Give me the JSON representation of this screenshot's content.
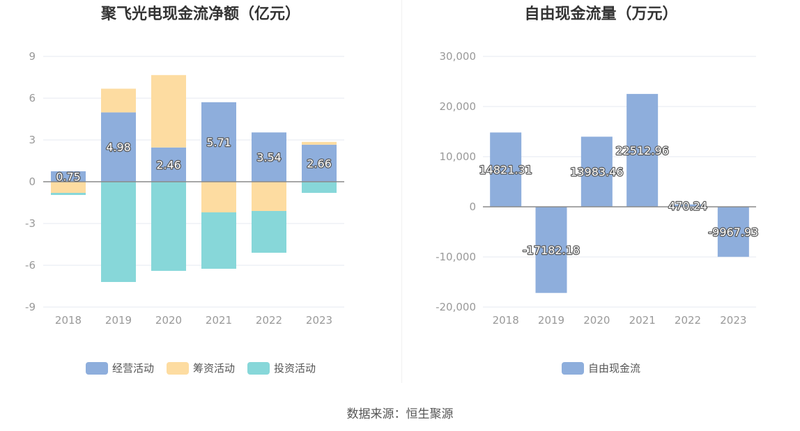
{
  "source_text": "数据来源：恒生聚源",
  "chart_data": [
    {
      "type": "bar",
      "stacked": true,
      "title": "聚飞光电现金流净额（亿元）",
      "categories": [
        "2018",
        "2019",
        "2020",
        "2021",
        "2022",
        "2023"
      ],
      "ylim": [
        -9,
        9
      ],
      "yticks": [
        9,
        6,
        3,
        0,
        -3,
        -6,
        -9
      ],
      "ytick_labels": [
        "9",
        "6",
        "3",
        "0",
        "-3",
        "-6",
        "-9"
      ],
      "grid": true,
      "legend_position": "bottom",
      "series": [
        {
          "name": "经营活动",
          "color": "#8eaedc",
          "values": [
            0.75,
            4.98,
            2.46,
            5.71,
            3.54,
            2.66
          ],
          "labels": [
            "0.75",
            "4.98",
            "2.46",
            "5.71",
            "3.54",
            "2.66"
          ]
        },
        {
          "name": "筹资活动",
          "color": "#fddca1",
          "values": [
            -0.8,
            1.7,
            5.2,
            -2.2,
            -2.1,
            0.2
          ],
          "labels": []
        },
        {
          "name": "投资活动",
          "color": "#87d7d9",
          "values": [
            -0.15,
            -7.2,
            -6.4,
            -4.05,
            -3.0,
            -0.8
          ],
          "labels": []
        }
      ]
    },
    {
      "type": "bar",
      "title": "自由现金流量（万元）",
      "categories": [
        "2018",
        "2019",
        "2020",
        "2021",
        "2022",
        "2023"
      ],
      "ylim": [
        -20000,
        30000
      ],
      "yticks": [
        30000,
        20000,
        10000,
        0,
        -10000,
        -20000
      ],
      "ytick_labels": [
        "30,000",
        "20,000",
        "10,000",
        "0",
        "-10,000",
        "-20,000"
      ],
      "grid": true,
      "legend_position": "bottom",
      "series": [
        {
          "name": "自由现金流",
          "color": "#8eaedc",
          "values": [
            14821.31,
            -17182.18,
            13983.46,
            22512.96,
            470.24,
            -9967.93
          ],
          "labels": [
            "14821.31",
            "-17182.18",
            "13983.46",
            "22512.96",
            "470.24",
            "-9967.93"
          ]
        }
      ]
    }
  ]
}
